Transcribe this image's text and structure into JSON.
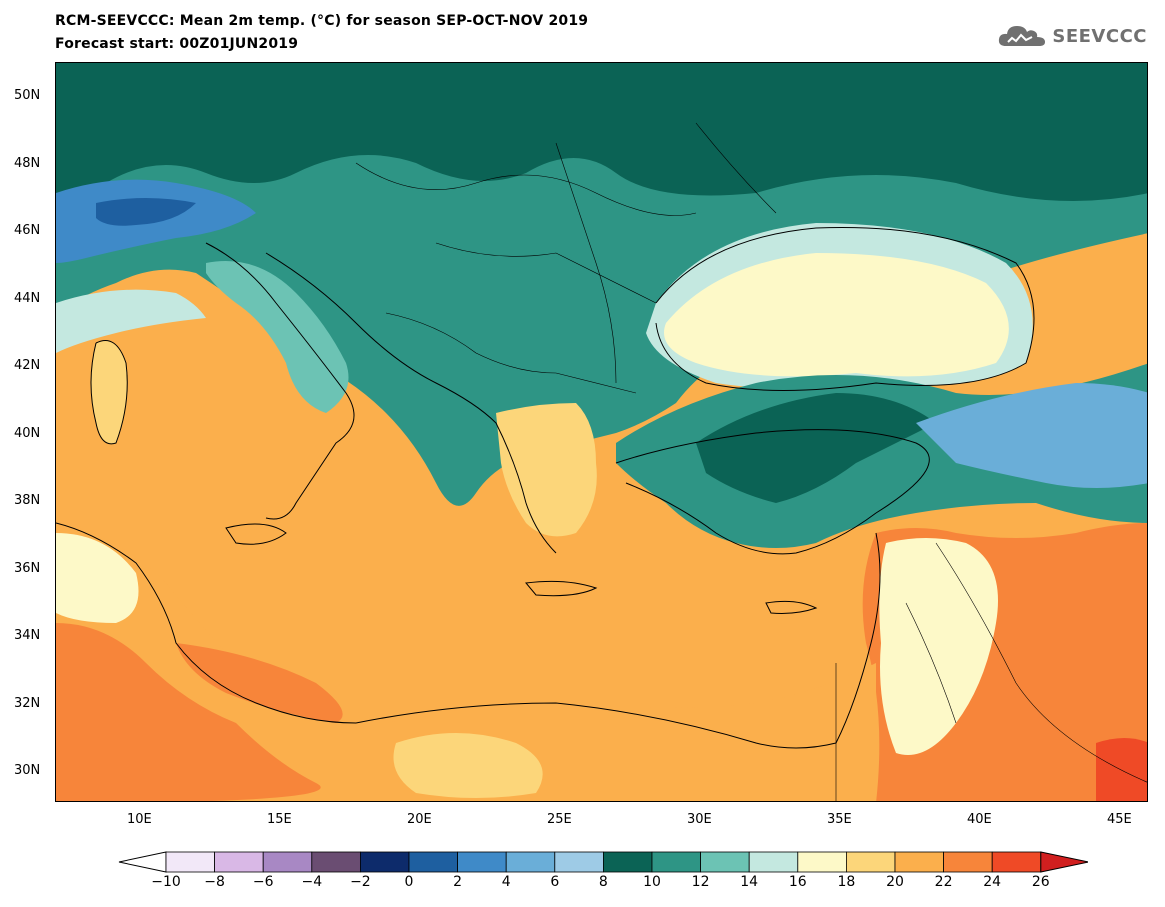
{
  "header": {
    "title_line1": "RCM-SEEVCCC: Mean 2m temp. (°C) for season SEP-OCT-NOV 2019",
    "title_line2": "Forecast start: 00Z01JUN2019",
    "logo_text": "SEEVCCC"
  },
  "map": {
    "projection": "lat-lon",
    "lon_range": [
      7,
      46
    ],
    "lat_range": [
      29,
      51
    ],
    "lat_ticks": [
      "50N",
      "48N",
      "46N",
      "44N",
      "42N",
      "40N",
      "38N",
      "36N",
      "34N",
      "32N",
      "30N"
    ],
    "lon_ticks": [
      "10E",
      "15E",
      "20E",
      "25E",
      "30E",
      "35E",
      "40E",
      "45E"
    ],
    "variable": "Mean 2m temperature",
    "units": "°C"
  },
  "colorbar": {
    "levels": [
      "-10",
      "-8",
      "-6",
      "-4",
      "-2",
      "0",
      "2",
      "4",
      "6",
      "8",
      "10",
      "12",
      "14",
      "16",
      "18",
      "20",
      "22",
      "24",
      "26"
    ],
    "colors": [
      "#f2e8f8",
      "#d9b8e6",
      "#a888c4",
      "#6a4d72",
      "#0d2b6b",
      "#1e5fa0",
      "#3f8ac8",
      "#6aaed8",
      "#9ecbe6",
      "#0b6355",
      "#2e9585",
      "#6cc3b4",
      "#c4e8e0",
      "#fdf9c8",
      "#fcd67a",
      "#fbaf4c",
      "#f7853a",
      "#ef4a26"
    ],
    "under_color": "#ffffff",
    "over_color": "#d11f1f"
  }
}
